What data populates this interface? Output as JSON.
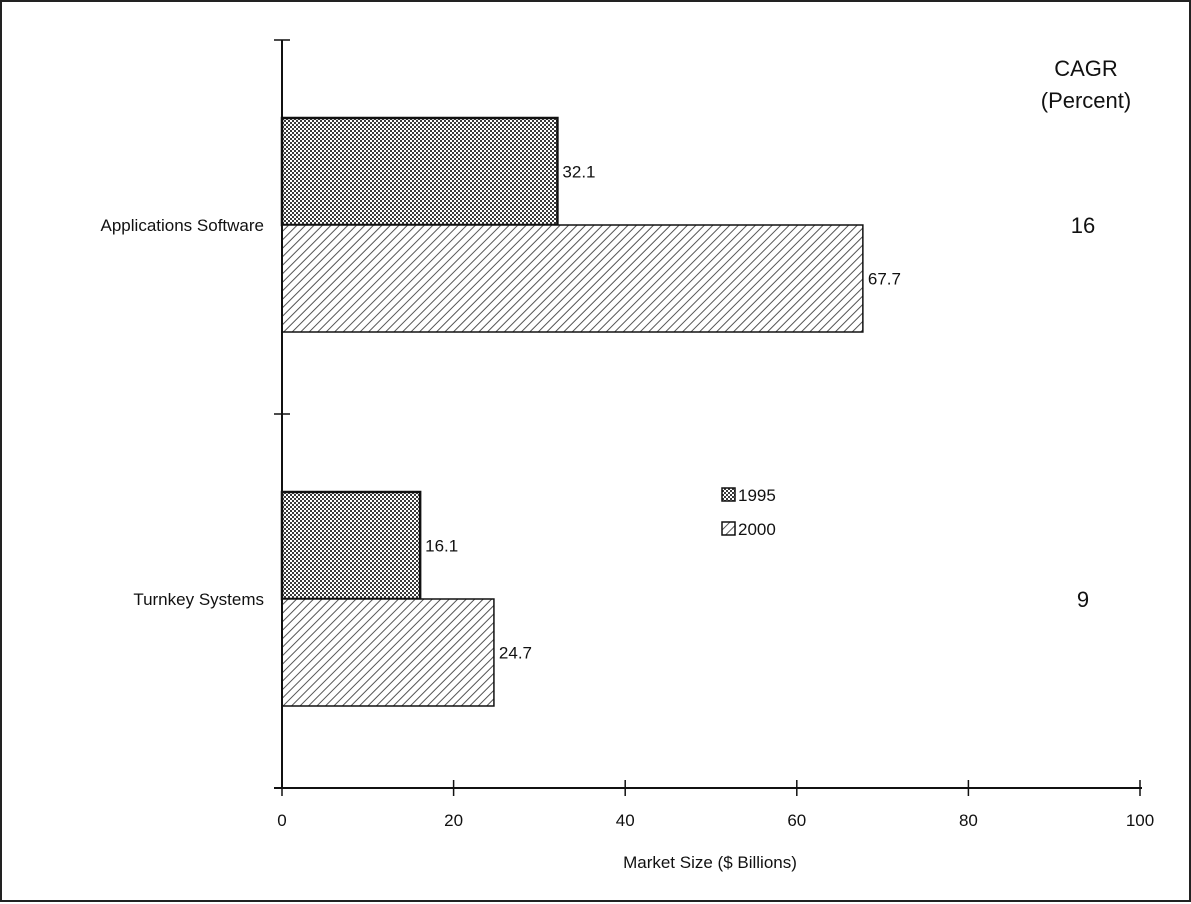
{
  "chart_data": {
    "type": "bar",
    "orientation": "horizontal",
    "categories": [
      "Applications Software",
      "Turnkey Systems"
    ],
    "series": [
      {
        "name": "1995",
        "values": [
          32.1,
          16.1
        ]
      },
      {
        "name": "2000",
        "values": [
          67.7,
          24.7
        ]
      }
    ],
    "data_labels": [
      [
        "32.1",
        "16.1"
      ],
      [
        "67.7",
        "24.7"
      ]
    ],
    "xlabel": "Market Size ($ Billions)",
    "xlim": [
      0,
      100
    ],
    "xticks": [
      0,
      20,
      40,
      60,
      80,
      100
    ],
    "legend_placement": "center-right",
    "grid": false,
    "side_column": {
      "header_line1": "CAGR",
      "header_line2": "(Percent)",
      "values": [
        "16",
        "9"
      ]
    },
    "colors": {
      "series_1995": "#6e6e6e",
      "series_2000": "#9a9a9a",
      "axis": "#111111"
    }
  }
}
